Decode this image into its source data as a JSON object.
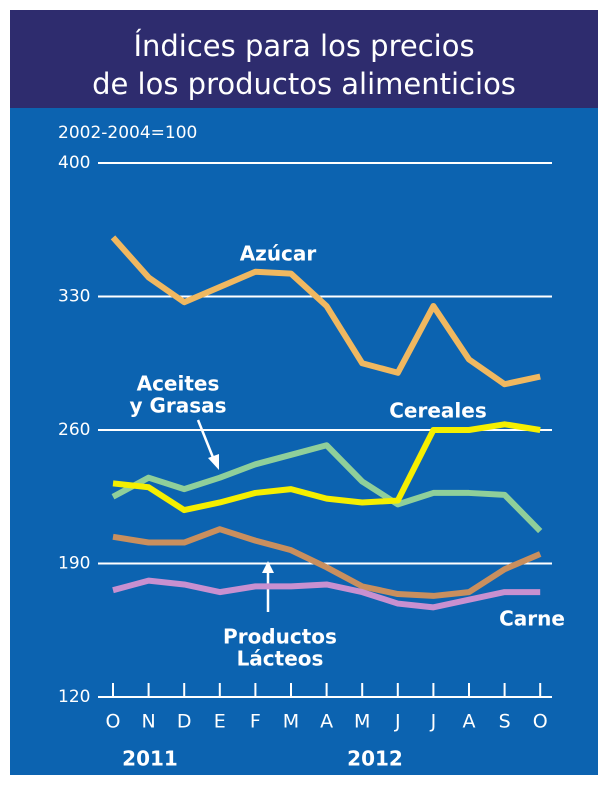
{
  "chart_data": {
    "type": "line",
    "title": [
      "Índices para los precios",
      "de los productos alimenticios"
    ],
    "subtitle": "2002-2004=100",
    "categories": [
      "O",
      "N",
      "D",
      "E",
      "F",
      "M",
      "A",
      "M",
      "J",
      "J",
      "A",
      "S",
      "O"
    ],
    "years": [
      "2011",
      "2012"
    ],
    "ylim": [
      120,
      400
    ],
    "yticks": [
      120,
      190,
      260,
      330,
      400
    ],
    "grid": true,
    "series": [
      {
        "label": [
          "Azúcar"
        ],
        "color": "#f0b860",
        "values": [
          361,
          340,
          327,
          335,
          343,
          342,
          325,
          295,
          290,
          325,
          297,
          284,
          288
        ]
      },
      {
        "label": [
          "Aceites",
          "y Grasas"
        ],
        "color": "#8fcf9a",
        "values": [
          225,
          235,
          229,
          235,
          242,
          247,
          252,
          233,
          221,
          227,
          227,
          226,
          207
        ]
      },
      {
        "label": [
          "Cereales"
        ],
        "color": "#f5ef00",
        "values": [
          232,
          230,
          218,
          222,
          227,
          229,
          224,
          222,
          223,
          260,
          260,
          263,
          260
        ]
      },
      {
        "label": [
          "Productos",
          "Lácteos"
        ],
        "color": "#c98f5e",
        "values": [
          204,
          201,
          201,
          208,
          202,
          197,
          188,
          178,
          174,
          173,
          175,
          187,
          195
        ]
      },
      {
        "label": [
          "Carne"
        ],
        "color": "#c890d0",
        "values": [
          176,
          181,
          179,
          175,
          178,
          178,
          179,
          175,
          169,
          167,
          171,
          175,
          175
        ]
      }
    ]
  }
}
